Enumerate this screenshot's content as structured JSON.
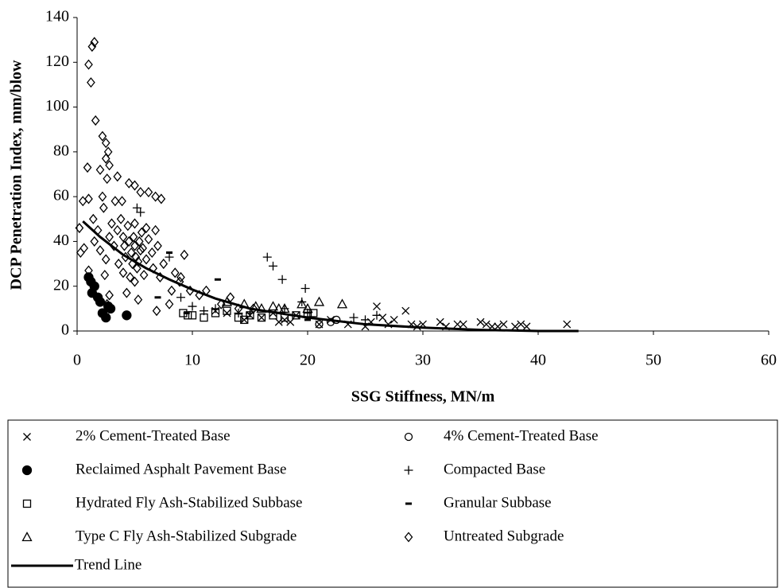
{
  "chart_data": {
    "type": "scatter",
    "x_label": "SSG Stiffness, MN/m",
    "y_label": "DCP Penetration Index, mm/blow",
    "xlim": [
      0,
      60
    ],
    "xticks": [
      0,
      10,
      20,
      30,
      40,
      50,
      60
    ],
    "ylim": [
      0,
      140
    ],
    "yticks": [
      0,
      20,
      40,
      60,
      80,
      100,
      120,
      140
    ],
    "grid": false,
    "series": [
      {
        "name": "2% Cement-Treated Base",
        "marker": "x",
        "color": "#000000",
        "x": [
          14.5,
          15,
          16,
          17,
          17.5,
          18,
          18.5,
          21,
          22,
          23.5,
          25,
          25.5,
          26,
          26.5,
          27,
          28.5,
          29,
          29.5,
          31.5,
          32,
          33,
          35,
          35.5,
          36,
          37,
          38,
          39,
          42.5,
          13,
          12,
          19,
          27.5,
          30,
          33.5,
          36.5,
          38.5
        ],
        "values": [
          5,
          7,
          6,
          8,
          4,
          5,
          4,
          3,
          5,
          3,
          2,
          4,
          11,
          6,
          3,
          9,
          3,
          2,
          4,
          2,
          3,
          4,
          3,
          2,
          3,
          2,
          2,
          3,
          8,
          9,
          7,
          5,
          3,
          3,
          2,
          3
        ]
      },
      {
        "name": "4% Cement-Treated Base",
        "marker": "circle",
        "color": "#000000",
        "x": [
          22,
          22.5,
          21
        ],
        "values": [
          4,
          5,
          3
        ]
      },
      {
        "name": "Reclaimed Asphalt Pavement Base",
        "marker": "filled-circle",
        "color": "#000000",
        "x": [
          1,
          1.2,
          1.5,
          1.8,
          2,
          2.2,
          2.5,
          2.7,
          4.3,
          1.3,
          2.9
        ],
        "values": [
          24,
          22,
          20,
          15,
          13,
          8,
          6,
          11,
          7,
          17,
          10
        ]
      },
      {
        "name": "Compacted Base",
        "marker": "plus",
        "color": "#000000",
        "x": [
          16.5,
          17,
          17.8,
          19.8,
          19.5,
          5.5,
          8,
          9,
          10,
          11,
          12,
          14,
          15,
          18,
          20,
          24,
          25,
          26,
          5.2
        ],
        "values": [
          33,
          29,
          23,
          19,
          13,
          53,
          33,
          15,
          11,
          9,
          10,
          8,
          8,
          10,
          8,
          6,
          5,
          7,
          55
        ]
      },
      {
        "name": "Hydrated Fly Ash-Stabilized Subbase",
        "marker": "square",
        "color": "#000000",
        "x": [
          9.2,
          9.6,
          10,
          11,
          12,
          14,
          15,
          16,
          17,
          18,
          19,
          20,
          20.5,
          14.5,
          13
        ],
        "values": [
          8,
          7,
          7,
          6,
          8,
          6,
          7,
          6,
          7,
          6,
          7,
          8,
          8,
          5,
          9
        ]
      },
      {
        "name": "Granular Subbase",
        "marker": "dash",
        "color": "#000000",
        "x": [
          8,
          12.2,
          9.5,
          7,
          20
        ],
        "values": [
          35,
          23,
          8,
          15,
          5
        ]
      },
      {
        "name": "Type C Fly Ash-Stabilized Subgrade",
        "marker": "triangle",
        "color": "#000000",
        "x": [
          13,
          14.5,
          15.5,
          16,
          17,
          17.5,
          18,
          19.5,
          21,
          23,
          20
        ],
        "values": [
          13,
          12,
          11,
          10,
          11,
          10,
          10,
          12,
          13,
          12,
          10
        ]
      },
      {
        "name": "Untreated Subgrade",
        "marker": "diamond",
        "color": "#000000",
        "x": [
          1.5,
          1.3,
          1.0,
          1.2,
          1.6,
          2.2,
          2.5,
          2.7,
          2.5,
          0.9,
          2.0,
          2.8,
          3.5,
          2.6,
          4.5,
          5.0,
          5.5,
          6.2,
          7.3,
          6.8,
          0.5,
          1.0,
          3.3,
          3.9,
          2.3,
          1.4,
          0.2,
          0.6,
          0.3,
          1.0,
          2.4,
          2.8,
          2.6,
          4.3,
          5.3,
          6.9,
          8.0,
          8.2,
          8.9,
          9.3,
          9.0,
          9.8,
          10.6,
          11.2,
          12.5,
          13.3,
          14.0,
          15.3,
          3.0,
          3.5,
          4.0,
          4.5,
          5.0,
          5.5,
          4.2,
          4.8,
          5.2,
          5.8,
          6.0,
          6.5,
          4.0,
          3.6,
          4.4,
          5.6,
          6.2,
          7.0,
          7.5,
          3.2,
          2.8,
          1.8,
          1.5,
          2.0,
          2.5,
          5.0,
          4.7,
          5.3,
          4.1,
          6.6,
          7.2,
          8.5,
          5.0,
          4.6,
          3.8,
          2.2,
          6.0,
          6.8,
          5.4,
          4.9,
          5.1,
          5.7
        ],
        "values": [
          129,
          127,
          119,
          111,
          94,
          87,
          84,
          80,
          77,
          73,
          72,
          74,
          69,
          68,
          66,
          65,
          62,
          62,
          59,
          60,
          58,
          59,
          58,
          58,
          55,
          50,
          46,
          37,
          35,
          27,
          25,
          16,
          12,
          17,
          14,
          9,
          12,
          18,
          22,
          34,
          24,
          18,
          16,
          18,
          12,
          15,
          10,
          10,
          48,
          45,
          42,
          40,
          38,
          36,
          33,
          30,
          28,
          25,
          32,
          35,
          26,
          30,
          47,
          44,
          41,
          38,
          30,
          38,
          42,
          45,
          40,
          36,
          32,
          48,
          35,
          31,
          38,
          28,
          24,
          26,
          22,
          24,
          50,
          60,
          46,
          45,
          40,
          42,
          33,
          37
        ]
      },
      {
        "name": "Trend Line",
        "marker": "line",
        "color": "#000000",
        "x": [
          0.5,
          2,
          4,
          6,
          8,
          10,
          12,
          15,
          20,
          25,
          30,
          35,
          40,
          43.5
        ],
        "values": [
          49,
          42,
          34,
          28,
          23,
          18.5,
          14.5,
          10,
          6,
          3,
          1.5,
          0.5,
          0,
          0
        ]
      }
    ]
  }
}
